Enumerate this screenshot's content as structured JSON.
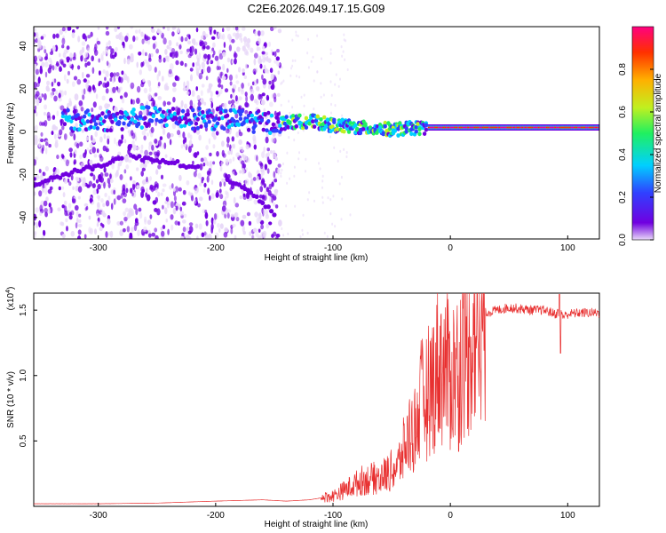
{
  "chart_data": [
    {
      "type": "heatmap",
      "title": "C2E6.2026.049.17.15.G09",
      "xlabel": "Height of straight line (km)",
      "ylabel": "Frequency (Hz)",
      "xlim": [
        -355,
        127
      ],
      "ylim": [
        -50,
        49
      ],
      "xticks": [
        -300,
        -200,
        -100,
        0,
        100
      ],
      "xtick_labels": [
        "-300",
        "-200",
        "-100",
        "0",
        "100"
      ],
      "yticks": [
        -40,
        -20,
        0,
        20,
        40
      ],
      "ytick_labels": [
        "-40",
        "-20",
        "0",
        "20",
        "40"
      ],
      "colorbar": {
        "label": "Normalized spectral amplitude",
        "range": [
          0,
          1
        ],
        "ticks": [
          0.0,
          0.2,
          0.4,
          0.6,
          0.8
        ],
        "tick_labels": [
          "0.0",
          "0.2",
          "0.4",
          "0.6",
          "0.8"
        ],
        "colors": [
          "#e8d8f8",
          "#7000e0",
          "#3040ff",
          "#00d0ff",
          "#20f060",
          "#c0f020",
          "#ffb000",
          "#ff3000",
          "#ff0080"
        ]
      },
      "features": {
        "noise_region_x": [
          -355,
          -145
        ],
        "main_track": [
          [
            -300,
            5
          ],
          [
            -250,
            7
          ],
          [
            -200,
            6
          ],
          [
            -145,
            4
          ],
          [
            -120,
            5
          ],
          [
            -100,
            3
          ],
          [
            -80,
            2
          ],
          [
            -50,
            1
          ],
          [
            -20,
            2
          ],
          [
            0,
            2
          ],
          [
            50,
            2
          ],
          [
            100,
            2
          ],
          [
            127,
            2
          ]
        ],
        "high_amplitude_x": [
          -20,
          127
        ],
        "faint_tracks": [
          [
            [
              -355,
              -25
            ],
            [
              -330,
              -20
            ],
            [
              -300,
              -16
            ],
            [
              -280,
              -12
            ]
          ],
          [
            [
              -270,
              -12
            ],
            [
              -250,
              -13
            ],
            [
              -230,
              -15
            ],
            [
              -215,
              -17
            ]
          ],
          [
            [
              -190,
              -22
            ],
            [
              -175,
              -27
            ],
            [
              -160,
              -33
            ],
            [
              -150,
              -38
            ]
          ]
        ]
      }
    },
    {
      "type": "line",
      "xlabel": "Height of straight line (km)",
      "ylabel": "SNR (10 * v/v)",
      "scale_label_base": "(x10",
      "scale_label_exp": "4",
      "scale_label_end": ")",
      "xlim": [
        -355,
        127
      ],
      "ylim": [
        0,
        1.63
      ],
      "xticks": [
        -300,
        -200,
        -100,
        0,
        100
      ],
      "xtick_labels": [
        "-300",
        "-200",
        "-100",
        "0",
        "100"
      ],
      "yticks": [
        0.5,
        1.0,
        1.5
      ],
      "ytick_labels": [
        "0.5",
        "1.0",
        "1.5"
      ],
      "series": [
        {
          "name": "SNR",
          "color": "#e83030",
          "x": [
            -355,
            -300,
            -250,
            -200,
            -160,
            -140,
            -120,
            -100,
            -85,
            -75,
            -60,
            -45,
            -35,
            -30,
            -25,
            -20,
            -15,
            -10,
            -5,
            0,
            5,
            10,
            15,
            20,
            25,
            30,
            40,
            50,
            60,
            70,
            80,
            90,
            94,
            96,
            100,
            110,
            120,
            127
          ],
          "values": [
            0.02,
            0.02,
            0.025,
            0.04,
            0.05,
            0.04,
            0.05,
            0.08,
            0.15,
            0.2,
            0.22,
            0.3,
            0.55,
            0.6,
            0.8,
            0.85,
            0.95,
            1.1,
            1.05,
            1.0,
            1.05,
            1.15,
            1.25,
            1.35,
            1.42,
            1.48,
            1.5,
            1.52,
            1.51,
            1.5,
            1.5,
            1.47,
            1.5,
            1.45,
            1.47,
            1.48,
            1.48,
            1.48
          ]
        }
      ]
    }
  ]
}
